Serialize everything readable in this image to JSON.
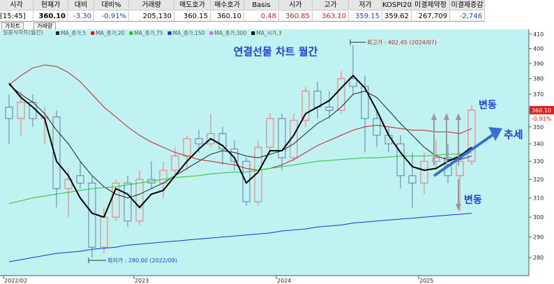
{
  "header": {
    "columns": [
      "시각",
      "현재가",
      "대비",
      "대비%",
      "거래량",
      "매도호가",
      "매수호가",
      "Basis",
      "시가",
      "고가",
      "저가",
      "KOSPI200",
      "미결제약정",
      "미결제증감"
    ],
    "values": [
      "[15:45]",
      "360.10",
      "-3.30",
      "-0.91%",
      "205,130",
      "360.15",
      "360.10",
      "0.48",
      "360.85",
      "363.10",
      "359.15",
      "359.62",
      "267,709",
      "-2,746"
    ],
    "value_colors": [
      "#000",
      "#000",
      "#1c3fd8",
      "#1c3fd8",
      "#000",
      "#000",
      "#000",
      "#e0201c",
      "#e0201c",
      "#e0201c",
      "#1c3fd8",
      "#000",
      "#000",
      "#1c3fd8"
    ]
  },
  "tabs": [
    "가차트",
    "거래량"
  ],
  "chart_data": {
    "type": "candlestick",
    "title": "연결선물 차트 월간",
    "legend_title": "일봉식차트(월간)",
    "categories": [
      "2022/02",
      null,
      null,
      null,
      null,
      null,
      null,
      null,
      null,
      null,
      null,
      "2023",
      null,
      null,
      null,
      null,
      null,
      null,
      null,
      null,
      null,
      null,
      null,
      "2024",
      null,
      null,
      null,
      null,
      null,
      null,
      null,
      null,
      null,
      null,
      null,
      "2025",
      null,
      null,
      null,
      null
    ],
    "open": [
      362,
      355,
      365,
      355,
      356,
      315,
      322,
      318,
      285,
      300,
      318,
      298,
      320,
      318,
      325,
      333,
      343,
      340,
      346,
      337,
      330,
      308,
      338,
      355,
      332,
      354,
      372,
      362,
      360,
      380,
      375,
      355,
      345,
      340,
      322,
      318,
      330,
      332,
      322,
      330
    ],
    "high": [
      370,
      372,
      370,
      362,
      360,
      325,
      330,
      322,
      305,
      320,
      322,
      325,
      330,
      330,
      338,
      345,
      348,
      358,
      350,
      342,
      332,
      342,
      358,
      358,
      358,
      375,
      378,
      372,
      385,
      402.45,
      382,
      360,
      350,
      345,
      335,
      335,
      342,
      340,
      335,
      363
    ],
    "low": [
      340,
      345,
      350,
      340,
      305,
      300,
      315,
      280,
      282,
      298,
      295,
      296,
      315,
      310,
      322,
      325,
      335,
      338,
      328,
      325,
      306,
      306,
      335,
      325,
      330,
      350,
      355,
      355,
      358,
      370,
      335,
      338,
      335,
      315,
      305,
      312,
      325,
      318,
      303,
      328
    ],
    "close": [
      355,
      365,
      355,
      356,
      315,
      320,
      318,
      285,
      300,
      318,
      298,
      320,
      318,
      325,
      333,
      343,
      340,
      346,
      337,
      330,
      308,
      338,
      355,
      332,
      354,
      372,
      362,
      360,
      380,
      375,
      355,
      345,
      340,
      322,
      318,
      330,
      332,
      322,
      330,
      360.1
    ],
    "up_color": "#f07070",
    "down_color": "#6a78a8",
    "series": [
      {
        "name": "MA_종가,5",
        "color": "#222222",
        "values": [
          376,
          370,
          365,
          358,
          348,
          340,
          330,
          322,
          316,
          312,
          310,
          312,
          315,
          318,
          322,
          326,
          330,
          334,
          336,
          335,
          333,
          332,
          334,
          336,
          340,
          346,
          352,
          356,
          362,
          370,
          372,
          368,
          360,
          352,
          345,
          338,
          333,
          331,
          331,
          333
        ]
      },
      {
        "name": "MA_종가,20",
        "color": "#c02020",
        "values": [
          376,
          382,
          387,
          389,
          388,
          384,
          378,
          370,
          362,
          356,
          350,
          345,
          341,
          338,
          335,
          333,
          331,
          330,
          329,
          328,
          326,
          325,
          326,
          328,
          331,
          335,
          339,
          342,
          345,
          348,
          350,
          351,
          350,
          349,
          348,
          348,
          347,
          347,
          346,
          349
        ]
      },
      {
        "name": "MA_종가,75",
        "color": "#30c030",
        "values": [
          307,
          308.5,
          310,
          311,
          312,
          313,
          314,
          315,
          315.5,
          316,
          317,
          318,
          319,
          320,
          321,
          321.5,
          322,
          323,
          323.5,
          324,
          324,
          325,
          326,
          327,
          328,
          329,
          330,
          330.5,
          331,
          331.5,
          332,
          332,
          332.5,
          333,
          333,
          333,
          333.5,
          334,
          334,
          335
        ]
      },
      {
        "name": "MA_종가,150",
        "color": "#1a2ed8",
        "values": [
          278,
          279,
          280,
          281,
          282,
          282.5,
          283,
          284,
          284.5,
          285,
          286,
          286.5,
          287,
          287.5,
          288,
          288.5,
          289,
          289.5,
          290,
          290.5,
          291,
          291.5,
          292,
          293,
          293.5,
          294,
          295,
          295.5,
          296,
          297,
          297.5,
          298,
          298.5,
          299,
          299.5,
          300,
          300.5,
          301,
          301.5,
          302
        ]
      },
      {
        "name": "MA_종가,300",
        "color": "#d070d0"
      },
      {
        "name": "MA_시가,3",
        "color": "#000000",
        "width": 2,
        "values": [
          377,
          368,
          362,
          355,
          330,
          322,
          310,
          302,
          300,
          315,
          312,
          305,
          312,
          314,
          322,
          330,
          337,
          343,
          339,
          332,
          318,
          324,
          336,
          336,
          345,
          358,
          362,
          366,
          374,
          382,
          374,
          360,
          345,
          335,
          327,
          325,
          326,
          330,
          333,
          338
        ]
      }
    ],
    "ylim": [
      271.5,
      413.4
    ],
    "log_scale": true,
    "yticks": [
      280,
      290,
      300,
      310,
      320,
      330,
      340,
      350,
      360,
      370,
      380,
      390,
      400,
      410
    ],
    "high_note": "최고가 : 402.45 (2024/07)",
    "low_note": "최저가 : 280.00 (2022/09)",
    "annotations": [
      "변동",
      "추세",
      "변동"
    ],
    "background": "#c0f2f2"
  }
}
